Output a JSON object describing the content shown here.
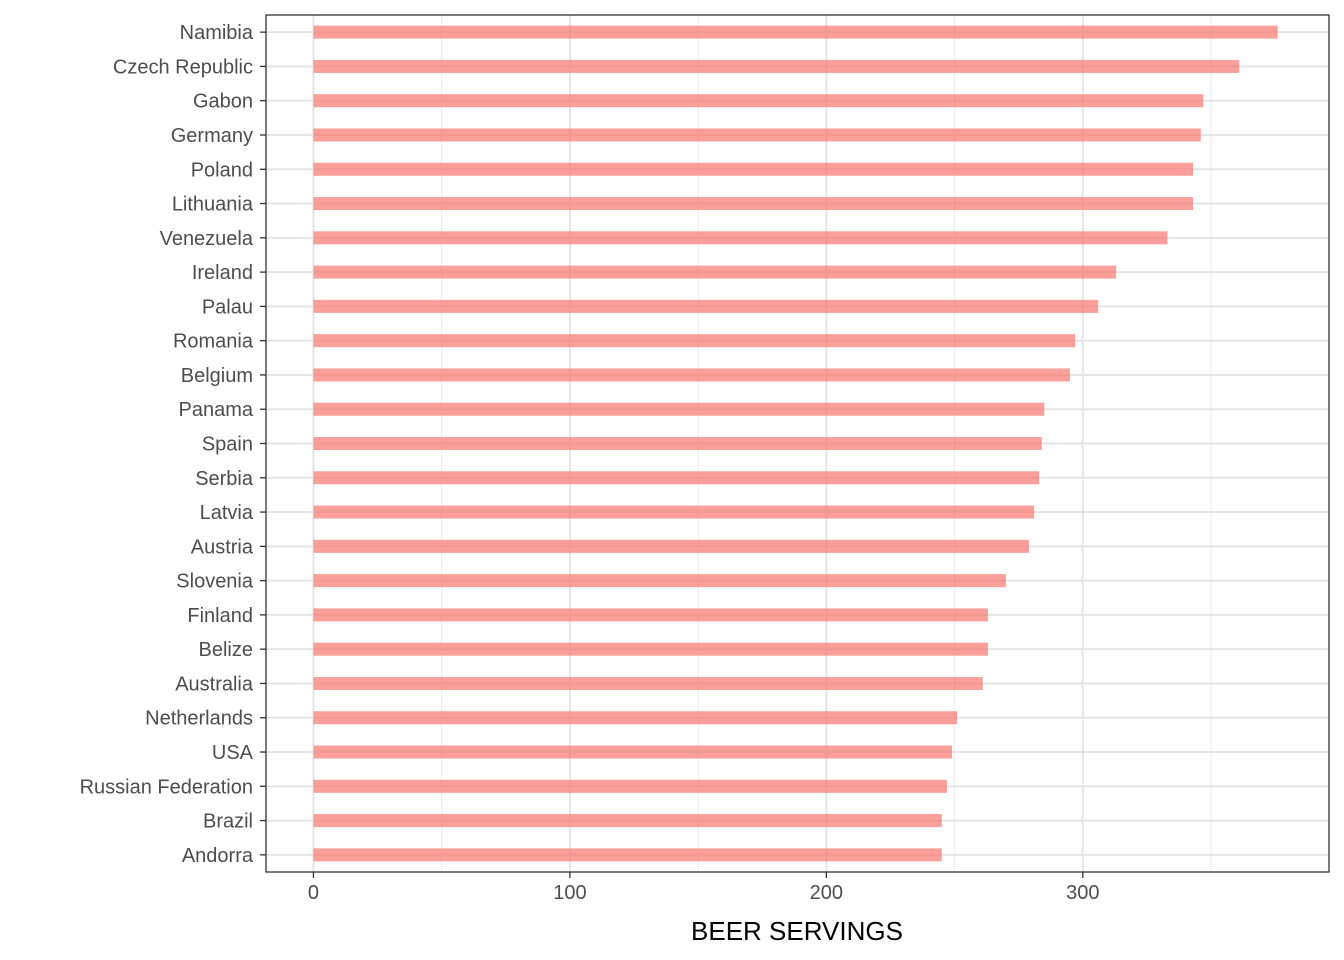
{
  "chart_data": {
    "type": "bar",
    "orientation": "horizontal",
    "title": "",
    "xlabel": "BEER SERVINGS",
    "ylabel": "",
    "xlim": [
      -18.5,
      396
    ],
    "x_ticks": [
      0,
      100,
      200,
      300
    ],
    "x_minor_ticks": [
      50,
      150,
      250,
      350
    ],
    "grid": true,
    "legend": "none",
    "bar_color": "#F8766D",
    "categories": [
      "Namibia",
      "Czech Republic",
      "Gabon",
      "Germany",
      "Poland",
      "Lithuania",
      "Venezuela",
      "Ireland",
      "Palau",
      "Romania",
      "Belgium",
      "Panama",
      "Spain",
      "Serbia",
      "Latvia",
      "Austria",
      "Slovenia",
      "Finland",
      "Belize",
      "Australia",
      "Netherlands",
      "USA",
      "Russian Federation",
      "Brazil",
      "Andorra"
    ],
    "values": [
      376,
      361,
      347,
      346,
      343,
      343,
      333,
      313,
      306,
      297,
      295,
      285,
      284,
      283,
      281,
      279,
      270,
      263,
      263,
      261,
      251,
      249,
      247,
      245,
      245
    ]
  }
}
